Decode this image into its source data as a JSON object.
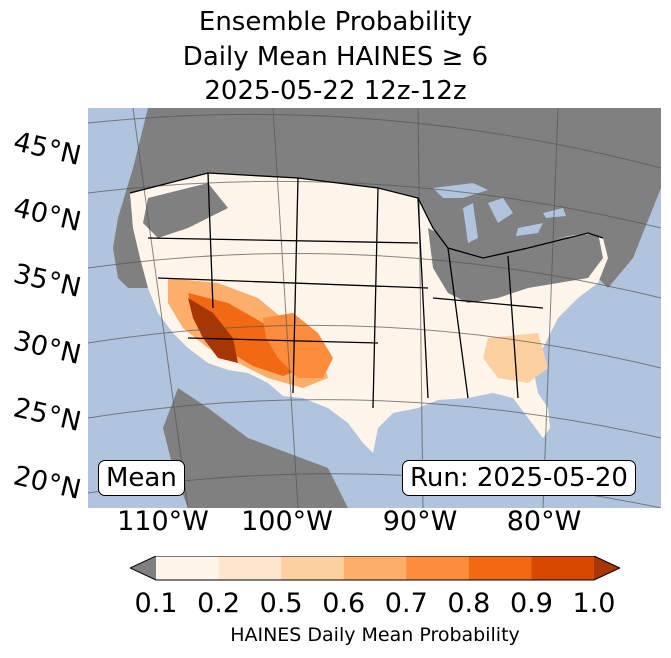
{
  "title": {
    "line1": "Ensemble Probability",
    "line2": "Daily Mean HAINES ≥ 6",
    "line3": "2025-05-22 12z-12z"
  },
  "map": {
    "lat_labels": [
      "45°N",
      "40°N",
      "35°N",
      "30°N",
      "25°N",
      "20°N"
    ],
    "lon_labels": [
      "110°W",
      "100°W",
      "90°W",
      "80°W"
    ],
    "stat_box": "Mean",
    "run_box": "Run: 2025-05-20",
    "colors": {
      "ocean": "#b0c4de",
      "masked": "#808080",
      "land_low": "#fff5eb",
      "lake": "#b0c4de"
    }
  },
  "colorbar": {
    "ticks": [
      "0.1",
      "0.2",
      "0.5",
      "0.6",
      "0.7",
      "0.8",
      "0.9",
      "1.0"
    ],
    "label": "HAINES Daily Mean Probability",
    "under_color": "#808080",
    "colors": [
      "#fff5eb",
      "#fee6ce",
      "#fdd0a2",
      "#fdae6b",
      "#fd8d3c",
      "#f16913",
      "#d94801",
      "#a63603"
    ]
  }
}
